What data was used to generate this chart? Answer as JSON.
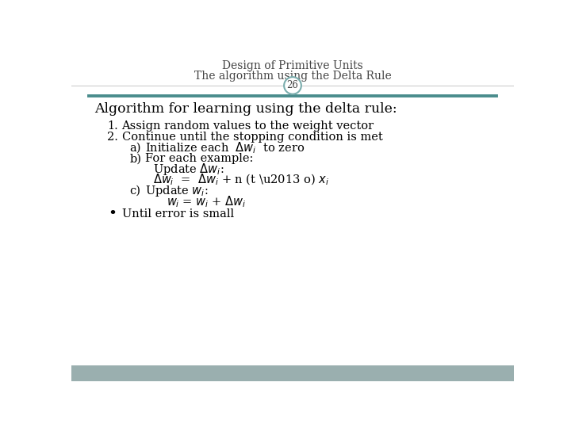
{
  "title_line1": "Design of Primitive Units",
  "title_line2": "The algorithm using the Delta Rule",
  "slide_number": "26",
  "bg_color": "#ffffff",
  "footer_color": "#9aafaf",
  "teal_line_color": "#4a8c8c",
  "gray_line_color": "#cccccc",
  "circle_edge_color": "#7aadad",
  "circle_fill_color": "#ffffff",
  "title_fontsize": 10,
  "body_fontsize": 10.5,
  "heading_fontsize": 12.5,
  "text_color": "#000000",
  "title_color": "#444444",
  "font_family": "serif"
}
